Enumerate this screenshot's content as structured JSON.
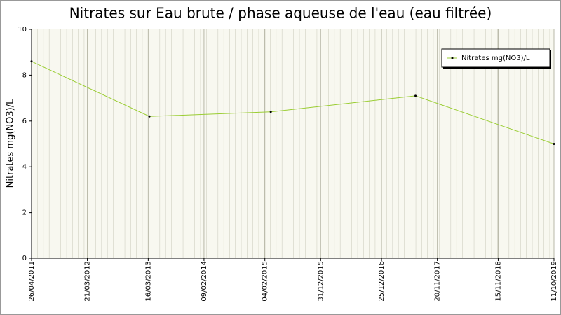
{
  "chart_data": {
    "type": "line",
    "title": "Nitrates sur Eau brute / phase aqueuse de l'eau (eau filtrée)",
    "y_label": "Nitrates mg(NO3)/L",
    "x": [
      "2011-04-26",
      "2013-03-23",
      "2015-03-11",
      "2017-07-14",
      "2019-10-11"
    ],
    "series": [
      {
        "name": "Nitrates mg(NO3)/L",
        "color": "#9acd32",
        "values": [
          8.6,
          6.2,
          6.4,
          7.1,
          5.0
        ]
      }
    ],
    "xlim": [
      "2011-04-26",
      "2019-10-11"
    ],
    "xticks": [
      {
        "value": "2011-04-26",
        "label": "26/04/2011"
      },
      {
        "value": "2012-03-21",
        "label": "21/03/2012"
      },
      {
        "value": "2013-03-16",
        "label": "16/03/2013"
      },
      {
        "value": "2014-02-09",
        "label": "09/02/2014"
      },
      {
        "value": "2015-02-04",
        "label": "04/02/2015"
      },
      {
        "value": "2015-12-31",
        "label": "31/12/2015"
      },
      {
        "value": "2016-12-25",
        "label": "25/12/2016"
      },
      {
        "value": "2017-11-20",
        "label": "20/11/2017"
      },
      {
        "value": "2018-11-15",
        "label": "15/11/2018"
      },
      {
        "value": "2019-10-11",
        "label": "11/10/2019"
      }
    ],
    "ylim": [
      0,
      10
    ],
    "yticks": [
      0,
      2,
      4,
      6,
      8,
      10
    ],
    "grid": true,
    "legend": "top-right"
  }
}
